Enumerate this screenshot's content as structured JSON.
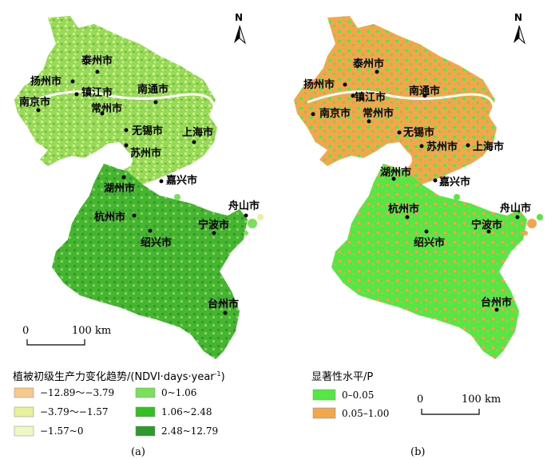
{
  "north_label": "N",
  "panel_a": {
    "label": "(a)",
    "legend_title": "植被初级生产力变化趋势/(NDVI·days·year",
    "legend_title_sup": "-1",
    "legend_title_end": ")",
    "legend_items": [
      {
        "label": "−12.89～−3.79",
        "color": "#f7c98a"
      },
      {
        "label": "−3.79～−1.57",
        "color": "#e9f09a"
      },
      {
        "label": "−1.57~0",
        "color": "#eef8c4"
      },
      {
        "label": "0~1.06",
        "color": "#7ae05a"
      },
      {
        "label": "1.06~2.48",
        "color": "#33c022"
      },
      {
        "label": "2.48~12.79",
        "color": "#2e9a2e"
      }
    ],
    "scale_start": "0",
    "scale_end": "100 km"
  },
  "panel_b": {
    "label": "(b)",
    "legend_title": "显著性水平/P",
    "legend_items": [
      {
        "label": "0–0.05",
        "color": "#55e844"
      },
      {
        "label": "0.05–1.00",
        "color": "#f4a64c"
      }
    ],
    "scale_start": "0",
    "scale_end": "100 km"
  },
  "cities": {
    "taizhou_js": "泰州市",
    "yangzhou": "扬州市",
    "zhenjiang": "镇江市",
    "nanjing": "南京市",
    "nantong": "南通市",
    "changzhou": "常州市",
    "wuxi": "无锡市",
    "suzhou": "苏州市",
    "shanghai": "上海市",
    "huzhou": "湖州市",
    "jiaxing": "嘉兴市",
    "hangzhou": "杭州市",
    "shaoxing": "绍兴市",
    "ningbo": "宁波市",
    "zhoushan": "舟山市",
    "taizhou_zj": "台州市"
  }
}
